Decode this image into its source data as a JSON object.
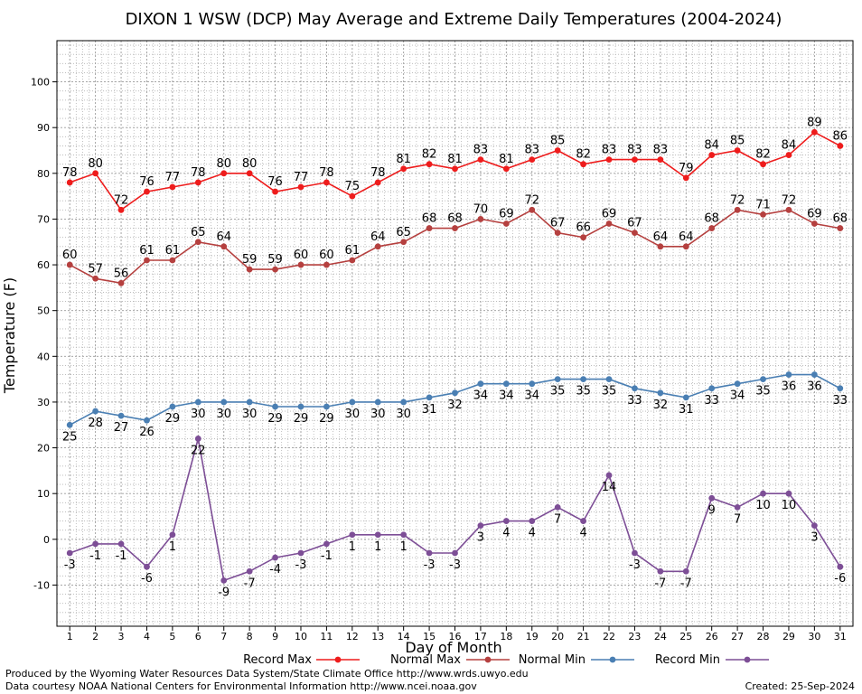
{
  "chart_data": {
    "type": "line",
    "title": "DIXON 1 WSW (DCP) May Average and Extreme Daily Temperatures (2004-2024)",
    "xlabel": "Day of Month",
    "ylabel": "Temperature (F)",
    "xlim": [
      0.5,
      31.5
    ],
    "ylim": [
      -19,
      109
    ],
    "y_ticks": [
      -10,
      0,
      10,
      20,
      30,
      40,
      50,
      60,
      70,
      80,
      90,
      100
    ],
    "x": [
      1,
      2,
      3,
      4,
      5,
      6,
      7,
      8,
      9,
      10,
      11,
      12,
      13,
      14,
      15,
      16,
      17,
      18,
      19,
      20,
      21,
      22,
      23,
      24,
      25,
      26,
      27,
      28,
      29,
      30,
      31
    ],
    "grid": true,
    "legend_position": "bottom",
    "series": [
      {
        "name": "Record Max",
        "color": "#ee1c1c",
        "label_position": "above",
        "values": [
          78,
          80,
          72,
          76,
          77,
          78,
          80,
          80,
          76,
          77,
          78,
          75,
          78,
          81,
          82,
          81,
          83,
          81,
          83,
          85,
          82,
          83,
          83,
          83,
          79,
          84,
          85,
          82,
          84,
          89,
          86
        ]
      },
      {
        "name": "Normal Max",
        "color": "#b5403f",
        "label_position": "above",
        "values": [
          60,
          57,
          56,
          61,
          61,
          65,
          64,
          59,
          59,
          60,
          60,
          61,
          64,
          65,
          68,
          68,
          70,
          69,
          72,
          67,
          66,
          69,
          67,
          64,
          64,
          68,
          72,
          71,
          72,
          69,
          68
        ]
      },
      {
        "name": "Normal Min",
        "color": "#4a7fb3",
        "label_position": "below",
        "values": [
          25,
          28,
          27,
          26,
          29,
          30,
          30,
          30,
          29,
          29,
          29,
          30,
          30,
          30,
          31,
          32,
          34,
          34,
          34,
          35,
          35,
          35,
          33,
          32,
          31,
          33,
          34,
          35,
          36,
          36,
          33
        ]
      },
      {
        "name": "Record Min",
        "color": "#7d4e96",
        "label_position": "below",
        "values": [
          -3,
          -1,
          -1,
          -6,
          1,
          22,
          -9,
          -7,
          -4,
          -3,
          -1,
          1,
          1,
          1,
          -3,
          -3,
          3,
          4,
          4,
          7,
          4,
          14,
          -3,
          -7,
          -7,
          9,
          7,
          10,
          10,
          3,
          -6
        ]
      }
    ]
  },
  "footer": {
    "produced_by": "Produced by the Wyoming Water Resources Data System/State Climate Office http://www.wrds.uwyo.edu",
    "data_courtesy": "Data courtesy NOAA National Centers for Environmental Information http://www.ncei.noaa.gov",
    "created": "Created:  25-Sep-2024"
  }
}
